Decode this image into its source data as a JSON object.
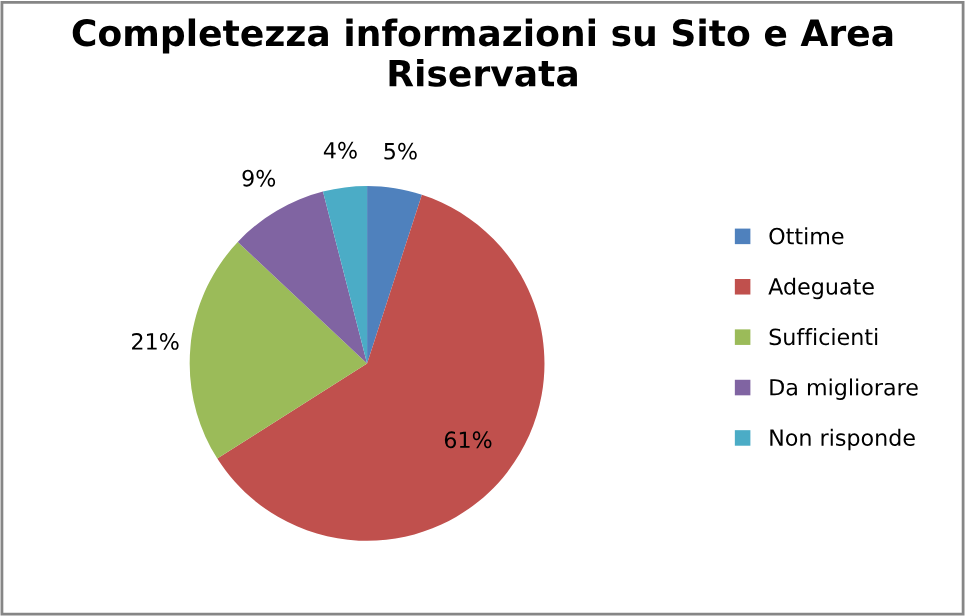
{
  "chart_data": {
    "type": "pie",
    "title": "Completezza informazioni su Sito e Area Riservata",
    "categories": [
      "Ottime",
      "Adeguate",
      "Sufficienti",
      "Da migliorare",
      "Non risponde"
    ],
    "values": [
      5,
      61,
      21,
      9,
      4
    ],
    "colors": [
      "#4f81bd",
      "#c0504d",
      "#9bbb59",
      "#8064a2",
      "#4bacc6"
    ],
    "value_labels": [
      "5%",
      "61%",
      "21%",
      "9%",
      "4%"
    ],
    "legend": "right"
  }
}
